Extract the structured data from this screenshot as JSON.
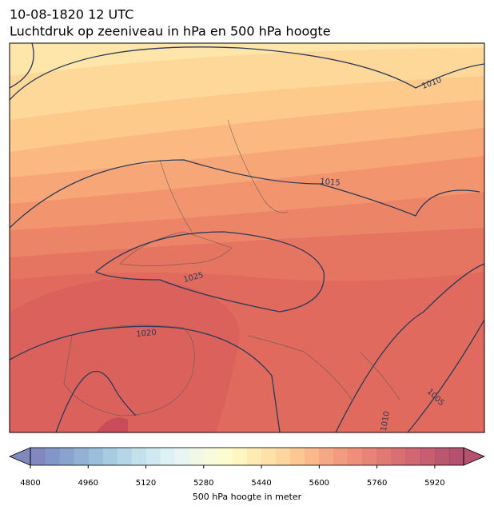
{
  "header": {
    "line1": "10-08-1820 12 UTC",
    "line2": "Luchtdruk op zeeniveau in hPa en 500 hPa hoogte"
  },
  "map": {
    "contour_labels": [
      "1010",
      "1015",
      "1025",
      "1020",
      "1005",
      "1010"
    ]
  },
  "colorbar": {
    "lim": [
      4800,
      6000
    ],
    "ticks": [
      4800,
      4960,
      5120,
      5280,
      5440,
      5600,
      5760,
      5920
    ],
    "label": "500 hPa hoogte in meter",
    "colors": [
      "#6b73b4",
      "#6f83bd",
      "#7693c5",
      "#7fa3cc",
      "#8ab3d5",
      "#98c2dc",
      "#a7cfe3",
      "#b8dbea",
      "#c8e5ef",
      "#d8eef3",
      "#e5f3f0",
      "#eff7e4",
      "#f7fad6",
      "#fdfbc6",
      "#fef3b5",
      "#fee8a6",
      "#fedc9a",
      "#fdce8d",
      "#fcbd80",
      "#f9ab77",
      "#f59970",
      "#f1896a",
      "#eb7a64",
      "#e36d5f",
      "#db615c",
      "#d1575a",
      "#c84c59",
      "#bd4258",
      "#b03a57",
      "#a83355"
    ]
  }
}
